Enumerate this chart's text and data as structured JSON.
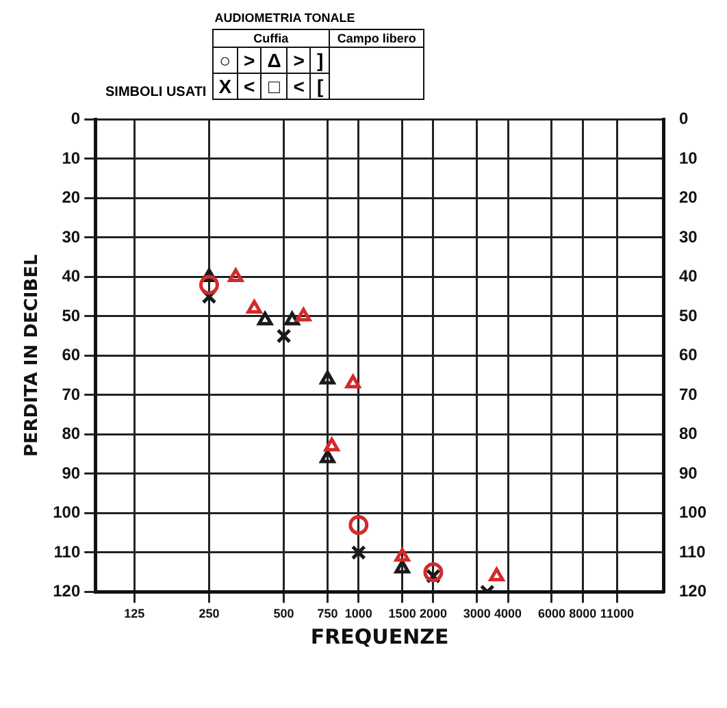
{
  "chart_data": {
    "type": "scatter",
    "title": "AUDIOMETRIA TONALE",
    "xlabel": "FREQUENZE",
    "ylabel": "PERDITA IN DECIBEL",
    "annotations": [
      "SIMBOLI USATI",
      "Cuffia",
      "Campo libero",
      "○",
      ">",
      "Δ",
      ">",
      "]",
      "X",
      "<",
      "□",
      "<",
      "["
    ],
    "series": [
      {
        "color": "#d42a2a",
        "marker": "circle",
        "x": [
          250,
          1000,
          2000
        ],
        "values": [
          42,
          103,
          115
        ]
      },
      {
        "color": "#1a1a1a",
        "marker": "cross",
        "x": [
          250,
          500,
          1000,
          2000,
          3300
        ],
        "values": [
          45,
          55,
          110,
          116,
          120
        ]
      },
      {
        "color": "#d42a2a",
        "marker": "triangle",
        "x": [
          320,
          380,
          600,
          950,
          780,
          1500,
          3600
        ],
        "values": [
          40,
          48,
          50,
          67,
          83,
          111,
          116
        ]
      },
      {
        "color": "#1a1a1a",
        "marker": "triangle",
        "x": [
          250,
          420,
          540,
          750,
          750,
          1500
        ],
        "values": [
          40,
          51,
          51,
          66,
          86,
          114
        ]
      }
    ],
    "log": "x",
    "xlim": [
      87,
      17000
    ],
    "xticks": [
      125,
      250,
      500,
      750,
      1000,
      1500,
      2000,
      3000,
      4000,
      6000,
      8000,
      11000
    ],
    "ylim": [
      120,
      0
    ],
    "yticks": [
      0,
      10,
      20,
      30,
      40,
      50,
      60,
      70,
      80,
      90,
      100,
      110,
      120
    ],
    "y2lim": [
      120,
      0
    ],
    "y2ticks": [
      0,
      10,
      20,
      30,
      40,
      50,
      60,
      70,
      80,
      90,
      100,
      110,
      120
    ],
    "grid": true
  }
}
